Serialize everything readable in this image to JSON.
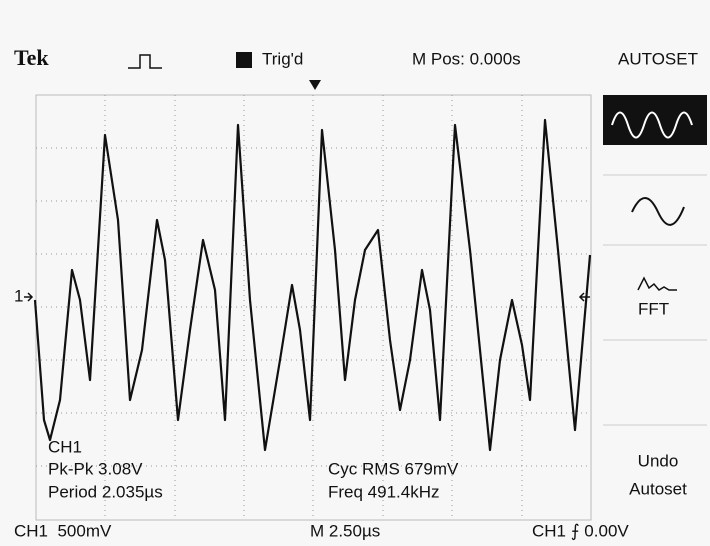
{
  "header": {
    "brand": "Tek",
    "trigger": "Trig'd",
    "position": "M Pos: 0.000s",
    "menu_title": "AUTOSET"
  },
  "channel_marker": "1",
  "menu": {
    "fft": "FFT",
    "undo": [
      "Undo",
      "Autoset"
    ]
  },
  "measurements": {
    "channel": "CH1",
    "pk_pk": "Pk-Pk 3.08V",
    "period": "Period 2.035µs",
    "cyc_rms": "Cyc RMS 679mV",
    "freq": "Freq 491.4kHz"
  },
  "footer": {
    "scale": "CH1  500mV",
    "time": "M 2.50µs",
    "trigger": "CH1 ⨍ 0.00V"
  }
}
